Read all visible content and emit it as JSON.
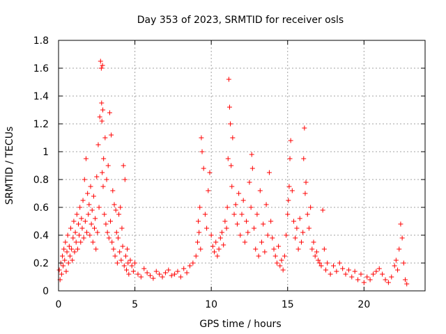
{
  "chart_data": {
    "type": "scatter",
    "title": "Day 353 of 2023, SRMTID for receiver osls",
    "xlabel": "GPS time / hours",
    "ylabel": "SRMTID / TECUs",
    "xlim": [
      0,
      24
    ],
    "ylim": [
      0,
      1.8
    ],
    "x_ticks": [
      0,
      5,
      10,
      15,
      20
    ],
    "x_tick_labels": [
      "0",
      "5",
      "10",
      "15",
      "20"
    ],
    "y_ticks": [
      0,
      0.2,
      0.4,
      0.6,
      0.8,
      1.0,
      1.2,
      1.4,
      1.6,
      1.8
    ],
    "y_tick_labels": [
      "0",
      "0.2",
      "0.4",
      "0.6",
      "0.8",
      "1",
      "1.2",
      "1.4",
      "1.6",
      "1.8"
    ],
    "grid": true,
    "marker": "+",
    "color": "#ff0000",
    "series": [
      {
        "name": "SRMTID",
        "x": [
          0.05,
          0.1,
          0.15,
          0.2,
          0.25,
          0.3,
          0.35,
          0.4,
          0.45,
          0.5,
          0.55,
          0.6,
          0.65,
          0.7,
          0.75,
          0.8,
          0.85,
          0.9,
          0.95,
          1.0,
          1.05,
          1.1,
          1.15,
          1.2,
          1.25,
          1.3,
          1.35,
          1.4,
          1.45,
          1.5,
          1.55,
          1.6,
          1.65,
          1.7,
          1.75,
          1.8,
          1.85,
          1.9,
          1.95,
          2.0,
          2.05,
          2.1,
          2.15,
          2.2,
          2.25,
          2.3,
          2.35,
          2.4,
          2.45,
          2.5,
          2.55,
          2.6,
          2.65,
          2.7,
          2.75,
          2.8,
          2.82,
          2.84,
          2.86,
          2.88,
          2.9,
          2.92,
          2.95,
          3.0,
          3.05,
          3.1,
          3.15,
          3.2,
          3.25,
          3.3,
          3.35,
          3.4,
          3.45,
          3.5,
          3.55,
          3.6,
          3.65,
          3.7,
          3.75,
          3.8,
          3.85,
          3.9,
          3.95,
          4.0,
          4.05,
          4.1,
          4.15,
          4.2,
          4.25,
          4.3,
          4.35,
          4.4,
          4.45,
          4.5,
          4.55,
          4.6,
          4.7,
          4.8,
          4.9,
          5.0,
          5.2,
          5.4,
          5.6,
          5.8,
          6.0,
          6.2,
          6.4,
          6.6,
          6.8,
          7.0,
          7.2,
          7.4,
          7.6,
          7.8,
          8.0,
          8.2,
          8.4,
          8.6,
          8.8,
          9.0,
          9.1,
          9.15,
          9.2,
          9.25,
          9.3,
          9.35,
          9.4,
          9.5,
          9.6,
          9.7,
          9.8,
          9.9,
          10.0,
          10.1,
          10.2,
          10.3,
          10.4,
          10.5,
          10.6,
          10.7,
          10.8,
          10.9,
          11.0,
          11.05,
          11.1,
          11.15,
          11.2,
          11.25,
          11.3,
          11.35,
          11.4,
          11.5,
          11.6,
          11.7,
          11.8,
          11.9,
          12.0,
          12.1,
          12.2,
          12.3,
          12.4,
          12.5,
          12.6,
          12.65,
          12.7,
          12.8,
          12.9,
          13.0,
          13.1,
          13.2,
          13.3,
          13.4,
          13.5,
          13.6,
          13.7,
          13.8,
          13.9,
          14.0,
          14.1,
          14.2,
          14.3,
          14.4,
          14.5,
          14.6,
          14.7,
          14.8,
          14.9,
          15.0,
          15.05,
          15.1,
          15.15,
          15.2,
          15.3,
          15.4,
          15.5,
          15.6,
          15.7,
          15.8,
          15.9,
          16.0,
          16.05,
          16.1,
          16.15,
          16.2,
          16.3,
          16.4,
          16.5,
          16.6,
          16.7,
          16.8,
          16.9,
          17.0,
          17.1,
          17.2,
          17.3,
          17.4,
          17.5,
          17.6,
          17.8,
          18.0,
          18.2,
          18.4,
          18.6,
          18.8,
          19.0,
          19.2,
          19.4,
          19.6,
          19.8,
          20.0,
          20.2,
          20.4,
          20.6,
          20.8,
          21.0,
          21.2,
          21.4,
          21.6,
          21.8,
          22.0,
          22.1,
          22.2,
          22.3,
          22.4,
          22.5,
          22.6,
          22.7,
          22.8
        ],
        "y": [
          0.15,
          0.08,
          0.2,
          0.12,
          0.25,
          0.18,
          0.3,
          0.22,
          0.35,
          0.14,
          0.28,
          0.4,
          0.2,
          0.32,
          0.25,
          0.45,
          0.3,
          0.22,
          0.38,
          0.5,
          0.28,
          0.42,
          0.35,
          0.55,
          0.3,
          0.48,
          0.4,
          0.6,
          0.35,
          0.52,
          0.45,
          0.65,
          0.38,
          0.8,
          0.5,
          0.95,
          0.42,
          0.7,
          0.55,
          0.62,
          0.4,
          0.75,
          0.48,
          0.58,
          0.35,
          0.68,
          0.45,
          0.52,
          0.3,
          0.82,
          0.42,
          1.05,
          0.6,
          1.25,
          1.65,
          1.6,
          1.35,
          1.22,
          0.85,
          1.62,
          1.3,
          0.75,
          0.95,
          0.55,
          1.1,
          0.48,
          0.8,
          0.42,
          0.9,
          0.38,
          1.28,
          0.5,
          1.12,
          0.35,
          0.72,
          0.3,
          0.62,
          0.25,
          0.58,
          0.42,
          0.2,
          0.38,
          0.55,
          0.28,
          0.6,
          0.22,
          0.45,
          0.32,
          0.9,
          0.18,
          0.8,
          0.25,
          0.15,
          0.3,
          0.2,
          0.12,
          0.22,
          0.18,
          0.14,
          0.2,
          0.12,
          0.1,
          0.16,
          0.13,
          0.11,
          0.09,
          0.14,
          0.12,
          0.1,
          0.13,
          0.15,
          0.11,
          0.12,
          0.14,
          0.1,
          0.16,
          0.13,
          0.18,
          0.2,
          0.25,
          0.35,
          0.5,
          0.42,
          0.6,
          0.3,
          1.1,
          1.0,
          0.88,
          0.55,
          0.45,
          0.72,
          0.85,
          0.4,
          0.32,
          0.28,
          0.35,
          0.25,
          0.3,
          0.38,
          0.42,
          0.33,
          0.5,
          0.45,
          0.6,
          0.95,
          1.52,
          1.32,
          1.2,
          0.9,
          0.75,
          1.1,
          0.55,
          0.62,
          0.48,
          0.7,
          0.4,
          0.55,
          0.65,
          0.35,
          0.5,
          0.42,
          0.78,
          0.6,
          0.98,
          0.88,
          0.45,
          0.3,
          0.55,
          0.25,
          0.72,
          0.35,
          0.48,
          0.28,
          0.62,
          0.4,
          0.85,
          0.5,
          0.38,
          0.3,
          0.25,
          0.2,
          0.32,
          0.18,
          0.22,
          0.15,
          0.25,
          0.4,
          0.55,
          0.65,
          0.75,
          0.95,
          1.08,
          0.72,
          0.5,
          0.38,
          0.45,
          0.3,
          0.52,
          0.35,
          0.42,
          0.95,
          1.17,
          0.7,
          0.78,
          0.55,
          0.45,
          0.6,
          0.3,
          0.35,
          0.25,
          0.28,
          0.22,
          0.2,
          0.18,
          0.58,
          0.3,
          0.15,
          0.2,
          0.12,
          0.18,
          0.14,
          0.2,
          0.16,
          0.12,
          0.15,
          0.1,
          0.14,
          0.08,
          0.12,
          0.06,
          0.1,
          0.08,
          0.12,
          0.14,
          0.16,
          0.12,
          0.08,
          0.06,
          0.1,
          0.18,
          0.22,
          0.15,
          0.3,
          0.48,
          0.38,
          0.2,
          0.08,
          0.05
        ]
      }
    ]
  }
}
